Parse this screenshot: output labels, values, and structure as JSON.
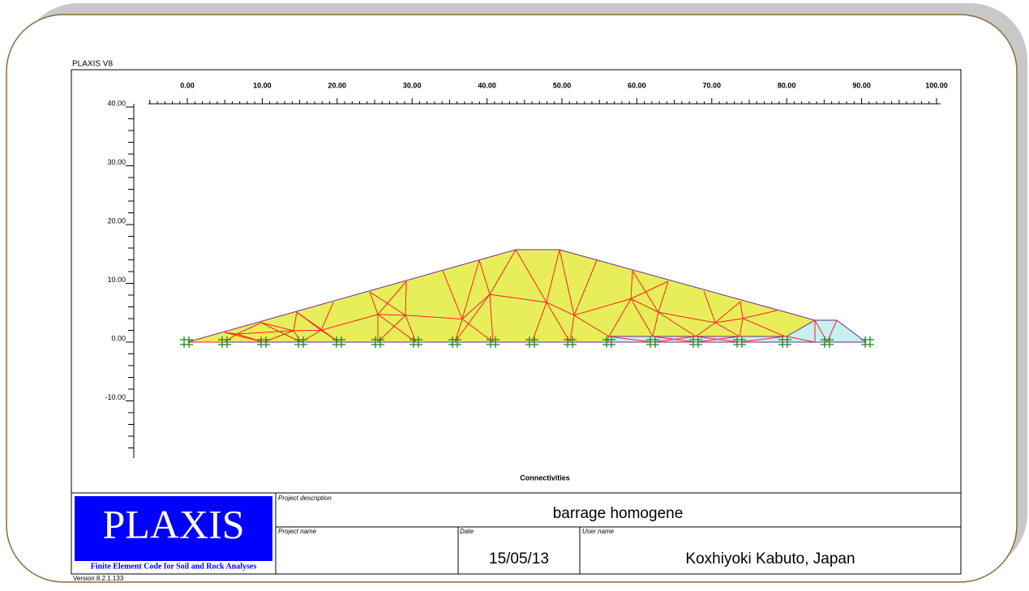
{
  "header": {
    "title": "PLAXIS V8"
  },
  "plot": {
    "x_axis_labels": [
      "0.00",
      "10.00",
      "20.00",
      "30.00",
      "40.00",
      "50.00",
      "60.00",
      "70.00",
      "80.00",
      "90.00",
      "100.00"
    ],
    "y_axis_labels": [
      "40.00",
      "30.00",
      "20.00",
      "10.00",
      "0.00",
      "-10.00"
    ],
    "caption": "Connectivities"
  },
  "title_block": {
    "logo": "PLAXIS",
    "logo_subtitle": "Finite Element Code for Soil and Rock Analyses",
    "version": "Version 8.2.1.133",
    "project_description_label": "Project description",
    "project_description": "barrage homogene",
    "project_name_label": "Project name",
    "date_label": "Date",
    "date": "15/05/13",
    "user_name_label": "User name",
    "user_name": "Koxhiyoki Kabuto, Japan"
  }
}
